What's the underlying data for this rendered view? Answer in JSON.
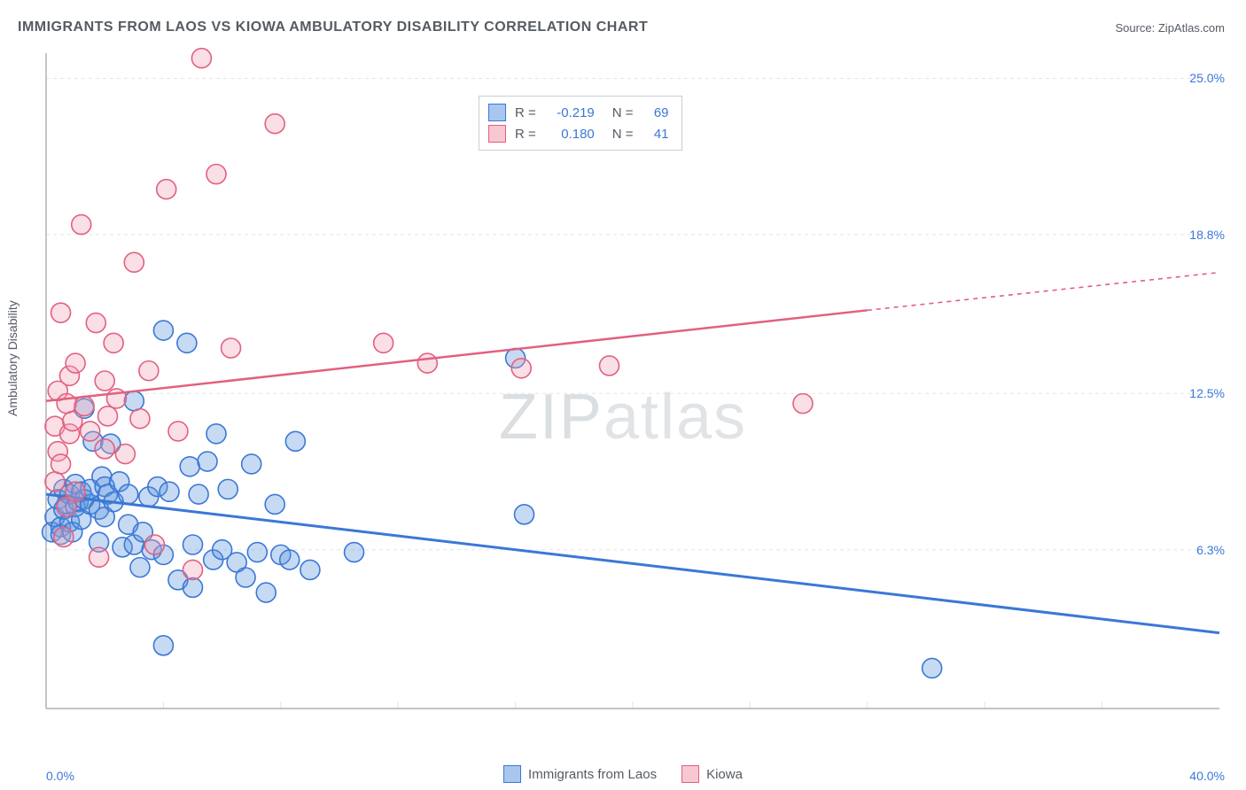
{
  "title": "IMMIGRANTS FROM LAOS VS KIOWA AMBULATORY DISABILITY CORRELATION CHART",
  "source_prefix": "Source: ",
  "source_name": "ZipAtlas.com",
  "ylabel": "Ambulatory Disability",
  "watermark_a": "ZIP",
  "watermark_b": "atlas",
  "chart": {
    "type": "scatter",
    "xlim": [
      0,
      40
    ],
    "ylim": [
      0,
      26
    ],
    "x_label_min": "0.0%",
    "x_label_max": "40.0%",
    "x_ticks": [
      0,
      4,
      8,
      12,
      16,
      20,
      24,
      28,
      32,
      36,
      40
    ],
    "y_gridlines": [
      {
        "val": 25.0,
        "label": "25.0%"
      },
      {
        "val": 18.8,
        "label": "18.8%"
      },
      {
        "val": 12.5,
        "label": "12.5%"
      },
      {
        "val": 6.3,
        "label": "6.3%"
      }
    ],
    "marker_radius": 11,
    "marker_fill_opacity": 0.35,
    "marker_stroke_width": 1.6,
    "grid_color": "#e2e5ea",
    "axis_color": "#9aa1ab",
    "background_color": "#ffffff",
    "label_color": "#3a78d6",
    "title_color": "#555b63",
    "font_family": "Arial",
    "title_fontsize": 16,
    "axis_label_fontsize": 14,
    "ylabel_fontsize": 14
  },
  "series": [
    {
      "name": "Immigrants from Laos",
      "color": "#5f95dd",
      "stroke": "#3a78d6",
      "R": "-0.219",
      "N": "69",
      "trend": {
        "x1": 0,
        "y1": 8.5,
        "x2": 40,
        "y2": 3.0,
        "dash": null,
        "width": 3
      },
      "points": [
        [
          0.2,
          7.0
        ],
        [
          0.3,
          7.6
        ],
        [
          0.4,
          8.3
        ],
        [
          0.5,
          7.2
        ],
        [
          0.5,
          6.9
        ],
        [
          0.6,
          8.7
        ],
        [
          0.6,
          7.9
        ],
        [
          0.7,
          8.1
        ],
        [
          0.8,
          7.4
        ],
        [
          0.8,
          8.5
        ],
        [
          0.9,
          7.0
        ],
        [
          1.0,
          8.0
        ],
        [
          1.0,
          8.9
        ],
        [
          1.1,
          8.2
        ],
        [
          1.2,
          8.6
        ],
        [
          1.2,
          7.5
        ],
        [
          1.3,
          8.3
        ],
        [
          1.3,
          11.9
        ],
        [
          1.5,
          8.1
        ],
        [
          1.5,
          8.7
        ],
        [
          1.6,
          10.6
        ],
        [
          1.8,
          7.9
        ],
        [
          1.8,
          6.6
        ],
        [
          1.9,
          9.2
        ],
        [
          2.0,
          8.8
        ],
        [
          2.0,
          7.6
        ],
        [
          2.1,
          8.5
        ],
        [
          2.2,
          10.5
        ],
        [
          2.3,
          8.2
        ],
        [
          2.5,
          9.0
        ],
        [
          2.6,
          6.4
        ],
        [
          2.8,
          7.3
        ],
        [
          2.8,
          8.5
        ],
        [
          3.0,
          6.5
        ],
        [
          3.0,
          12.2
        ],
        [
          3.2,
          5.6
        ],
        [
          3.3,
          7.0
        ],
        [
          3.5,
          8.4
        ],
        [
          3.6,
          6.3
        ],
        [
          3.8,
          8.8
        ],
        [
          4.0,
          15.0
        ],
        [
          4.0,
          6.1
        ],
        [
          4.0,
          2.5
        ],
        [
          4.2,
          8.6
        ],
        [
          4.5,
          5.1
        ],
        [
          4.8,
          14.5
        ],
        [
          4.9,
          9.6
        ],
        [
          5.0,
          4.8
        ],
        [
          5.0,
          6.5
        ],
        [
          5.2,
          8.5
        ],
        [
          5.5,
          9.8
        ],
        [
          5.7,
          5.9
        ],
        [
          5.8,
          10.9
        ],
        [
          6.0,
          6.3
        ],
        [
          6.2,
          8.7
        ],
        [
          6.5,
          5.8
        ],
        [
          6.8,
          5.2
        ],
        [
          7.0,
          9.7
        ],
        [
          7.2,
          6.2
        ],
        [
          7.5,
          4.6
        ],
        [
          7.8,
          8.1
        ],
        [
          8.0,
          6.1
        ],
        [
          8.3,
          5.9
        ],
        [
          8.5,
          10.6
        ],
        [
          9.0,
          5.5
        ],
        [
          10.5,
          6.2
        ],
        [
          16.0,
          13.9
        ],
        [
          16.3,
          7.7
        ],
        [
          30.2,
          1.6
        ]
      ]
    },
    {
      "name": "Kiowa",
      "color": "#f2a4b6",
      "stroke": "#e2607f",
      "R": "0.180",
      "N": "41",
      "trend_solid": {
        "x1": 0,
        "y1": 12.2,
        "x2": 28,
        "y2": 15.8,
        "width": 2.5
      },
      "trend_dash": {
        "x1": 28,
        "y1": 15.8,
        "x2": 40,
        "y2": 17.3,
        "width": 1.6,
        "dash": "5,5"
      },
      "points": [
        [
          0.3,
          9.0
        ],
        [
          0.3,
          11.2
        ],
        [
          0.4,
          10.2
        ],
        [
          0.4,
          12.6
        ],
        [
          0.5,
          9.7
        ],
        [
          0.5,
          15.7
        ],
        [
          0.6,
          6.8
        ],
        [
          0.7,
          12.1
        ],
        [
          0.7,
          8.0
        ],
        [
          0.8,
          10.9
        ],
        [
          0.8,
          13.2
        ],
        [
          0.9,
          11.4
        ],
        [
          1.0,
          8.6
        ],
        [
          1.0,
          13.7
        ],
        [
          1.2,
          19.2
        ],
        [
          1.3,
          12.0
        ],
        [
          1.5,
          11.0
        ],
        [
          1.7,
          15.3
        ],
        [
          1.8,
          6.0
        ],
        [
          2.0,
          13.0
        ],
        [
          2.0,
          10.3
        ],
        [
          2.1,
          11.6
        ],
        [
          2.3,
          14.5
        ],
        [
          2.4,
          12.3
        ],
        [
          2.7,
          10.1
        ],
        [
          3.0,
          17.7
        ],
        [
          3.2,
          11.5
        ],
        [
          3.5,
          13.4
        ],
        [
          3.7,
          6.5
        ],
        [
          4.1,
          20.6
        ],
        [
          4.5,
          11.0
        ],
        [
          5.0,
          5.5
        ],
        [
          5.3,
          25.8
        ],
        [
          5.8,
          21.2
        ],
        [
          6.3,
          14.3
        ],
        [
          7.8,
          23.2
        ],
        [
          11.5,
          14.5
        ],
        [
          13.0,
          13.7
        ],
        [
          16.2,
          13.5
        ],
        [
          19.2,
          13.6
        ],
        [
          25.8,
          12.1
        ]
      ]
    }
  ],
  "legend_bottom": [
    {
      "label": "Immigrants from Laos",
      "fill": "#a9c6ef",
      "stroke": "#3a78d6"
    },
    {
      "label": "Kiowa",
      "fill": "#f7c7d2",
      "stroke": "#e2607f"
    }
  ],
  "corr_box": {
    "rows": [
      {
        "fill": "#a9c6ef",
        "stroke": "#3a78d6",
        "R": "-0.219",
        "N": "69"
      },
      {
        "fill": "#f7c7d2",
        "stroke": "#e2607f",
        "R": "0.180",
        "N": "41"
      }
    ],
    "label_R": "R =",
    "label_N": "N ="
  }
}
